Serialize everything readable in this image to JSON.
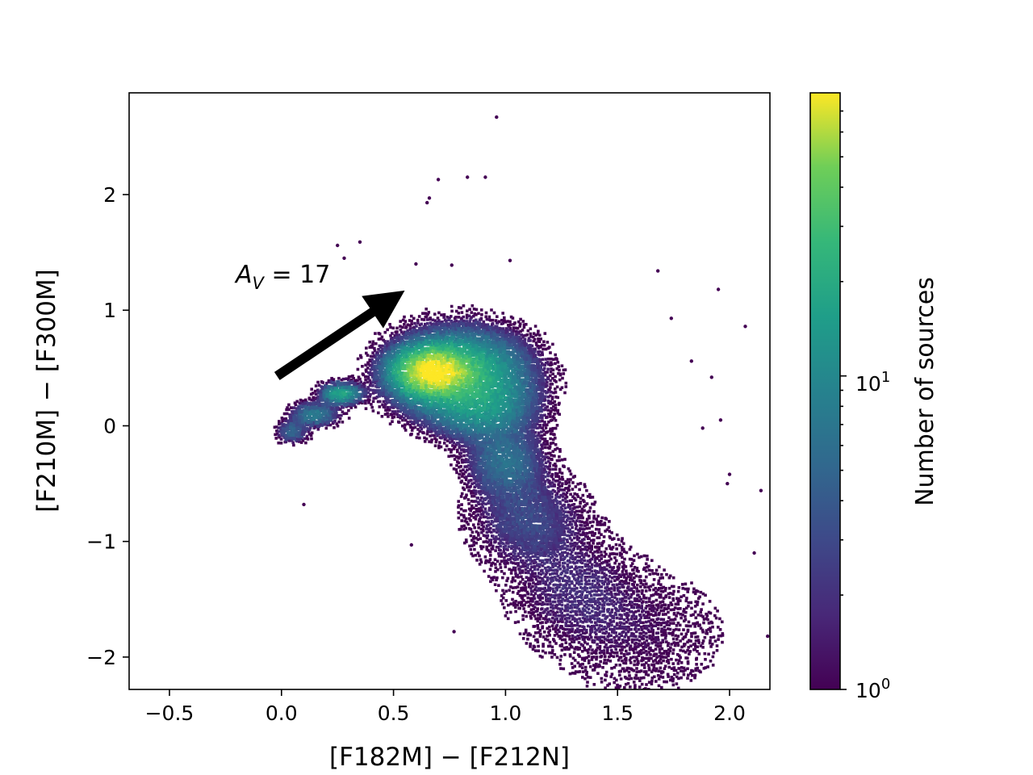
{
  "chart_data": {
    "type": "heatmap",
    "subtype": "hexbin color-color diagram",
    "title": "",
    "xlabel": "[F182M] − [F212N]",
    "ylabel": "[F210M] − [F300M]",
    "xlim": [
      -0.68,
      2.18
    ],
    "ylim": [
      -2.28,
      2.88
    ],
    "xticks": [
      -0.5,
      0.0,
      0.5,
      1.0,
      1.5,
      2.0
    ],
    "xtick_labels": [
      "−0.5",
      "0.0",
      "0.5",
      "1.0",
      "1.5",
      "2.0"
    ],
    "yticks": [
      -2,
      -1,
      0,
      1,
      2
    ],
    "ytick_labels": [
      "−2",
      "−1",
      "0",
      "1",
      "2"
    ],
    "colormap": "viridis",
    "colorbar": {
      "label": "Number of sources",
      "scale": "log",
      "range": [
        1,
        80
      ],
      "major_ticks": [
        1,
        10
      ],
      "major_tick_labels": [
        "10",
        "10"
      ],
      "major_tick_exponents": [
        "0",
        "1"
      ]
    },
    "annotation": {
      "label_main": "A",
      "label_sub": "V",
      "label_rest": " = 17",
      "arrow_from": [
        -0.02,
        0.43
      ],
      "arrow_to": [
        0.55,
        1.17
      ]
    },
    "density_components": [
      {
        "x": 0.68,
        "y": 0.47,
        "sx": 0.09,
        "sy": 0.11,
        "peak": 80
      },
      {
        "x": 0.8,
        "y": 0.45,
        "sx": 0.16,
        "sy": 0.2,
        "peak": 25
      },
      {
        "x": 0.27,
        "y": 0.28,
        "sx": 0.05,
        "sy": 0.05,
        "peak": 18
      },
      {
        "x": 0.15,
        "y": 0.1,
        "sx": 0.06,
        "sy": 0.06,
        "peak": 8
      },
      {
        "x": 0.05,
        "y": -0.05,
        "sx": 0.04,
        "sy": 0.06,
        "peak": 5
      },
      {
        "x": 0.9,
        "y": 0.15,
        "sx": 0.13,
        "sy": 0.15,
        "peak": 10
      },
      {
        "x": 1.0,
        "y": -0.3,
        "sx": 0.1,
        "sy": 0.18,
        "peak": 6
      },
      {
        "x": 1.1,
        "y": -0.8,
        "sx": 0.15,
        "sy": 0.25,
        "peak": 3
      },
      {
        "x": 1.3,
        "y": -1.4,
        "sx": 0.18,
        "sy": 0.3,
        "peak": 1.6
      },
      {
        "x": 1.6,
        "y": -1.8,
        "sx": 0.25,
        "sy": 0.35,
        "peak": 1.1
      }
    ],
    "outlier_points": [
      [
        0.96,
        2.67
      ],
      [
        0.83,
        2.15
      ],
      [
        0.91,
        2.15
      ],
      [
        0.7,
        2.13
      ],
      [
        0.66,
        1.97
      ],
      [
        0.65,
        1.93
      ],
      [
        0.35,
        1.59
      ],
      [
        0.25,
        1.56
      ],
      [
        1.02,
        1.43
      ],
      [
        0.6,
        1.4
      ],
      [
        0.76,
        1.39
      ],
      [
        1.68,
        1.34
      ],
      [
        1.95,
        1.18
      ],
      [
        2.07,
        0.86
      ],
      [
        1.92,
        0.42
      ],
      [
        1.96,
        0.05
      ],
      [
        2.14,
        -0.56
      ],
      [
        0.1,
        -0.68
      ],
      [
        0.58,
        -1.03
      ],
      [
        0.77,
        -1.78
      ],
      [
        0.28,
        1.45
      ],
      [
        1.74,
        0.93
      ],
      [
        1.83,
        0.56
      ],
      [
        2.0,
        -0.42
      ],
      [
        2.11,
        -1.1
      ],
      [
        2.17,
        -1.82
      ],
      [
        1.88,
        -0.02
      ],
      [
        1.99,
        -0.5
      ]
    ]
  }
}
